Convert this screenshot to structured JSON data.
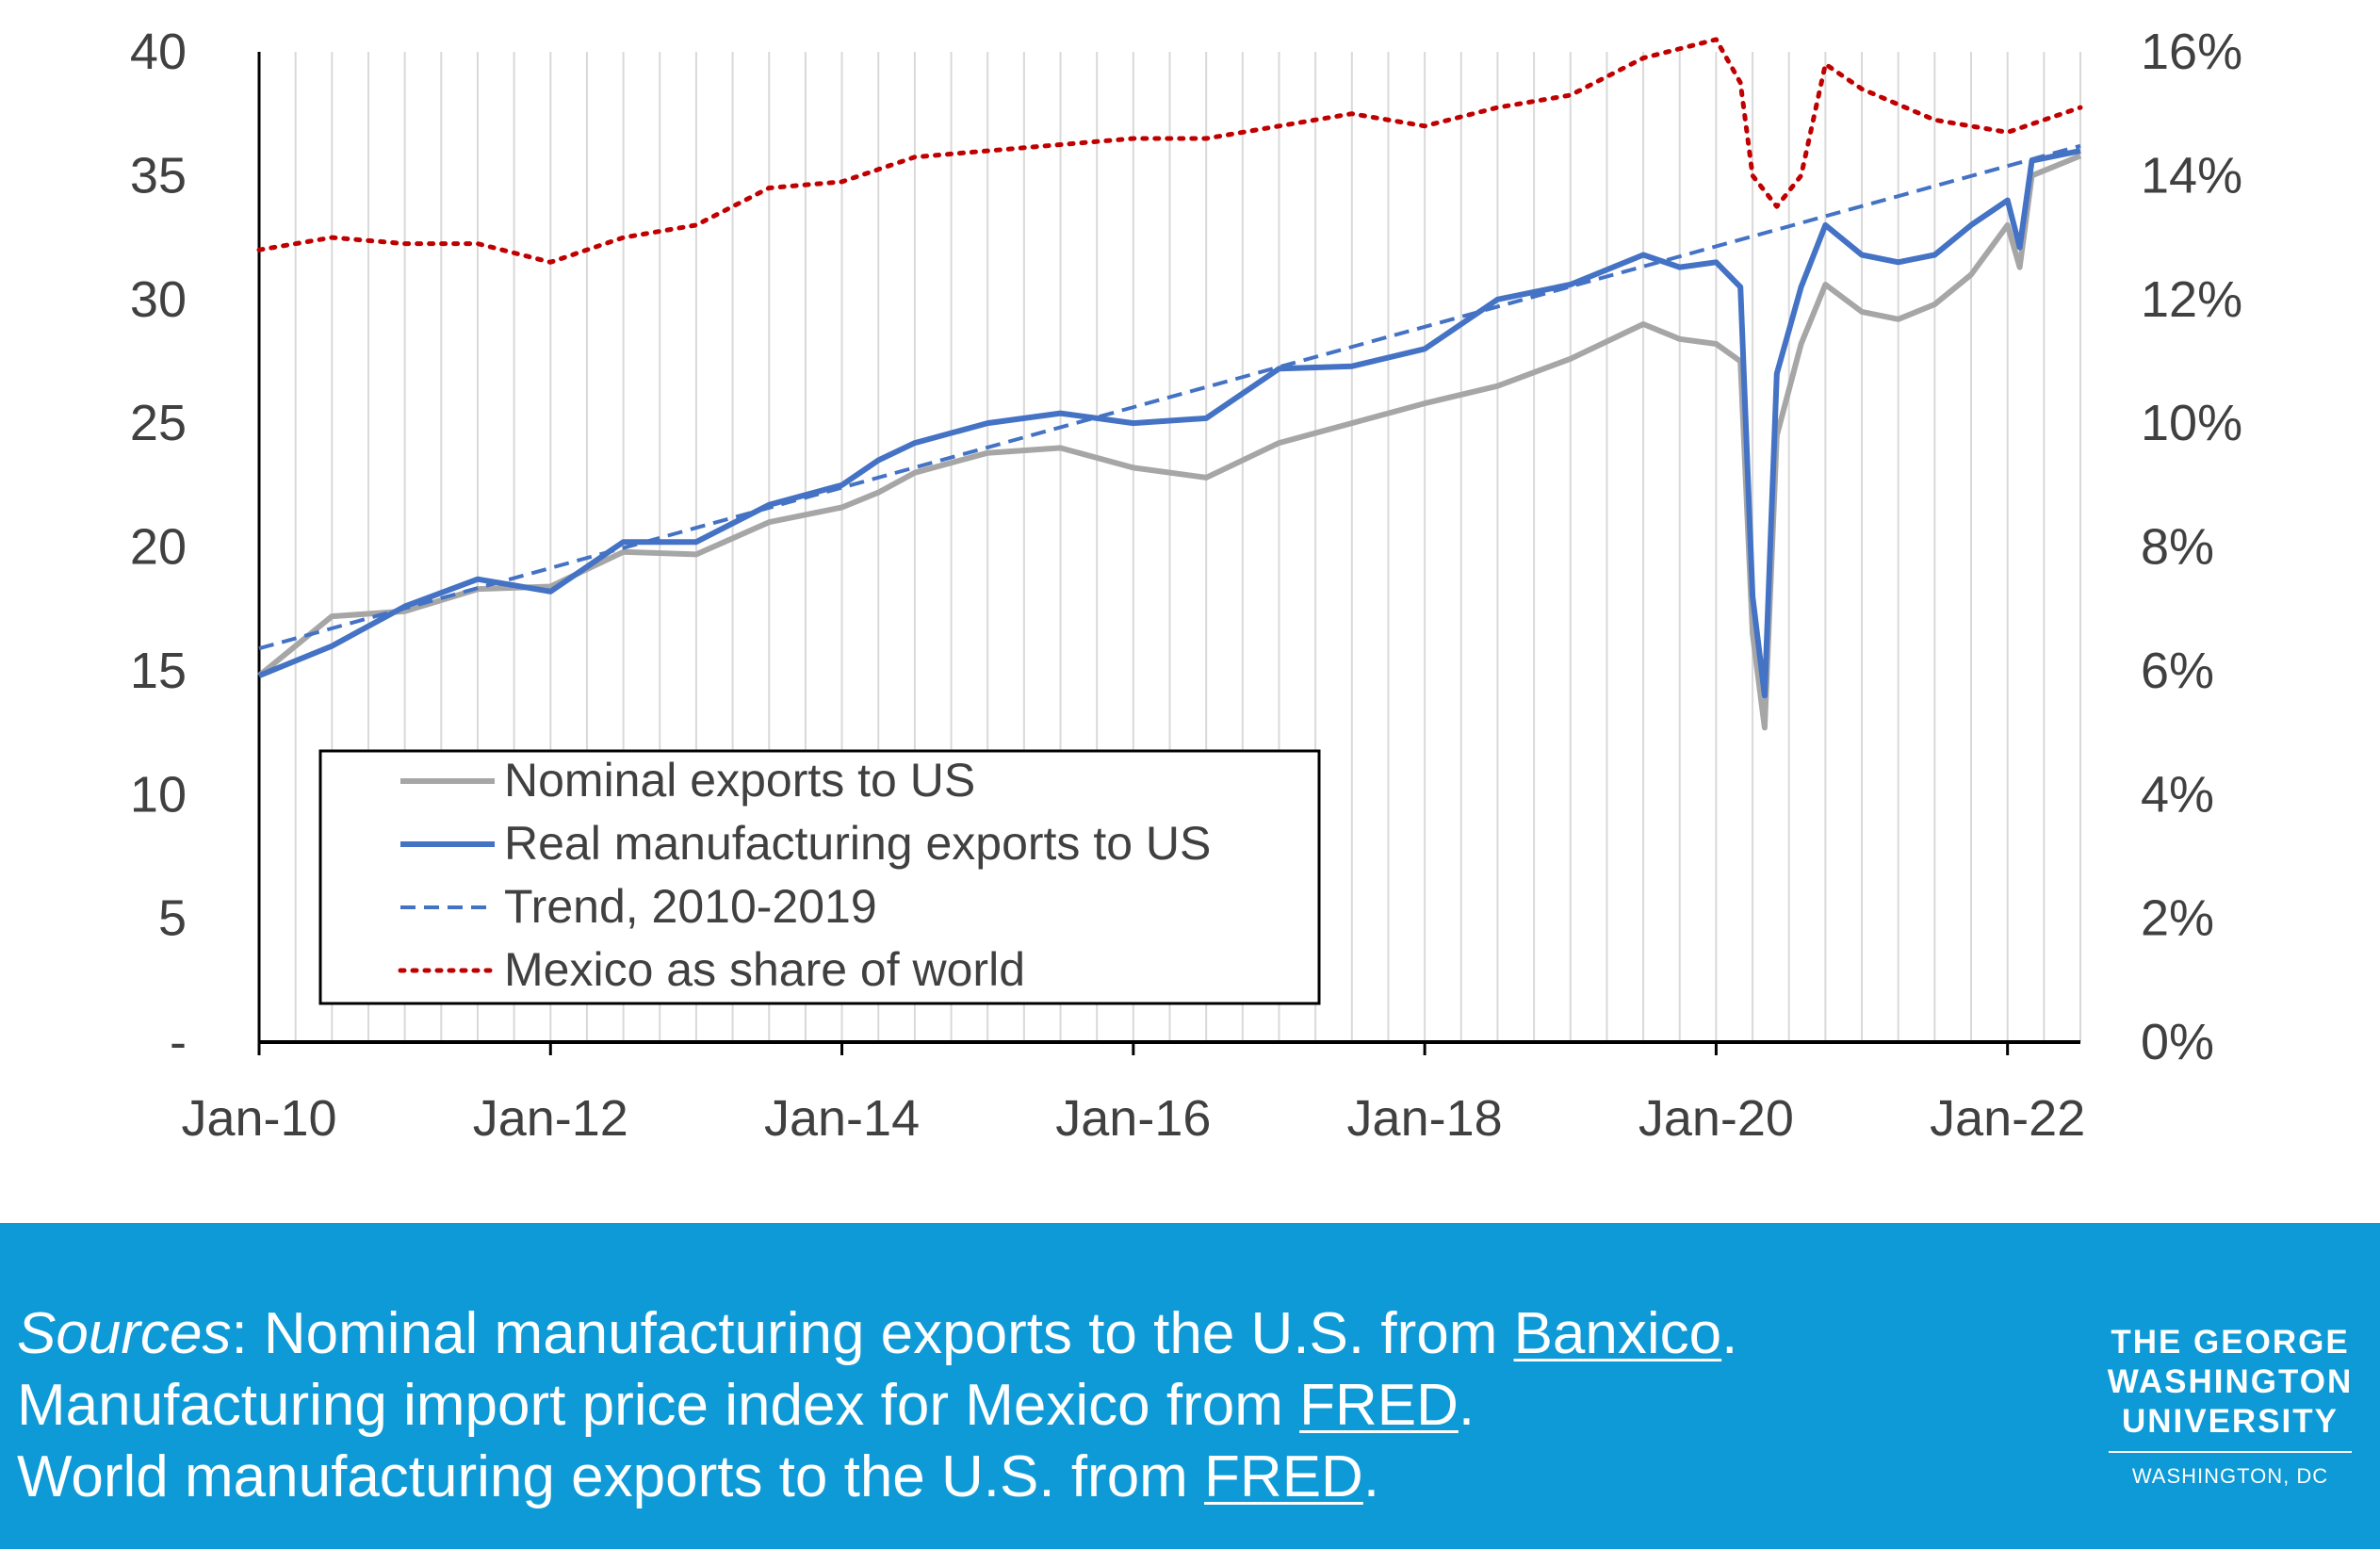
{
  "chart_data": {
    "type": "line",
    "title": "",
    "x_tick_labels": [
      "Jan-10",
      "Jan-12",
      "Jan-14",
      "Jan-16",
      "Jan-18",
      "Jan-20",
      "Jan-22"
    ],
    "x_range": [
      "2010-01",
      "2022-07"
    ],
    "y_left": {
      "ticks": [
        "-",
        "5",
        "10",
        "15",
        "20",
        "25",
        "30",
        "35",
        "40"
      ],
      "ylim": [
        0,
        40
      ]
    },
    "y_right": {
      "ticks": [
        "0%",
        "2%",
        "4%",
        "6%",
        "8%",
        "10%",
        "12%",
        "14%",
        "16%"
      ],
      "ylim": [
        0,
        16
      ]
    },
    "grid": "vertical",
    "legend_position": "bottom-left",
    "series": [
      {
        "name": "Nominal exports to US",
        "axis": "left",
        "style": "solid",
        "color": "#a6a6a6",
        "points": [
          [
            "2010-01",
            14.8
          ],
          [
            "2010-07",
            17.2
          ],
          [
            "2011-01",
            17.4
          ],
          [
            "2011-07",
            18.3
          ],
          [
            "2012-01",
            18.4
          ],
          [
            "2012-07",
            19.8
          ],
          [
            "2013-01",
            19.7
          ],
          [
            "2013-07",
            21.0
          ],
          [
            "2014-01",
            21.6
          ],
          [
            "2014-04",
            22.2
          ],
          [
            "2014-07",
            23.0
          ],
          [
            "2015-01",
            23.8
          ],
          [
            "2015-07",
            24.0
          ],
          [
            "2016-01",
            23.2
          ],
          [
            "2016-07",
            22.8
          ],
          [
            "2017-01",
            24.2
          ],
          [
            "2017-07",
            25.0
          ],
          [
            "2018-01",
            25.8
          ],
          [
            "2018-07",
            26.5
          ],
          [
            "2019-01",
            27.6
          ],
          [
            "2019-07",
            29.0
          ],
          [
            "2019-10",
            28.4
          ],
          [
            "2020-01",
            28.2
          ],
          [
            "2020-03",
            27.5
          ],
          [
            "2020-04",
            16.5
          ],
          [
            "2020-05",
            12.7
          ],
          [
            "2020-06",
            24.5
          ],
          [
            "2020-08",
            28.2
          ],
          [
            "2020-10",
            30.6
          ],
          [
            "2021-01",
            29.5
          ],
          [
            "2021-04",
            29.2
          ],
          [
            "2021-07",
            29.8
          ],
          [
            "2021-10",
            31.0
          ],
          [
            "2022-01",
            33.0
          ],
          [
            "2022-02",
            31.3
          ],
          [
            "2022-03",
            35.0
          ],
          [
            "2022-07",
            35.8
          ]
        ]
      },
      {
        "name": "Real manufacturing exports to US",
        "axis": "left",
        "style": "solid",
        "color": "#4472c4",
        "points": [
          [
            "2010-01",
            14.8
          ],
          [
            "2010-07",
            16.0
          ],
          [
            "2011-01",
            17.6
          ],
          [
            "2011-07",
            18.7
          ],
          [
            "2012-01",
            18.2
          ],
          [
            "2012-07",
            20.2
          ],
          [
            "2013-01",
            20.2
          ],
          [
            "2013-07",
            21.7
          ],
          [
            "2014-01",
            22.5
          ],
          [
            "2014-04",
            23.5
          ],
          [
            "2014-07",
            24.2
          ],
          [
            "2015-01",
            25.0
          ],
          [
            "2015-07",
            25.4
          ],
          [
            "2016-01",
            25.0
          ],
          [
            "2016-07",
            25.2
          ],
          [
            "2017-01",
            27.2
          ],
          [
            "2017-07",
            27.3
          ],
          [
            "2018-01",
            28.0
          ],
          [
            "2018-07",
            30.0
          ],
          [
            "2019-01",
            30.6
          ],
          [
            "2019-07",
            31.8
          ],
          [
            "2019-10",
            31.3
          ],
          [
            "2020-01",
            31.5
          ],
          [
            "2020-03",
            30.5
          ],
          [
            "2020-04",
            18.0
          ],
          [
            "2020-05",
            14.0
          ],
          [
            "2020-06",
            27.0
          ],
          [
            "2020-08",
            30.5
          ],
          [
            "2020-10",
            33.0
          ],
          [
            "2021-01",
            31.8
          ],
          [
            "2021-04",
            31.5
          ],
          [
            "2021-07",
            31.8
          ],
          [
            "2021-10",
            33.0
          ],
          [
            "2022-01",
            34.0
          ],
          [
            "2022-02",
            32.1
          ],
          [
            "2022-03",
            35.6
          ],
          [
            "2022-07",
            36.0
          ]
        ]
      },
      {
        "name": "Trend, 2010-2019",
        "axis": "left",
        "style": "dashed",
        "color": "#4472c4",
        "points": [
          [
            "2010-01",
            15.9
          ],
          [
            "2022-07",
            36.2
          ]
        ]
      },
      {
        "name": "Mexico as share of world",
        "axis": "right",
        "style": "dotted",
        "color": "#c00000",
        "points": [
          [
            "2010-01",
            12.8
          ],
          [
            "2010-07",
            13.0
          ],
          [
            "2011-01",
            12.9
          ],
          [
            "2011-07",
            12.9
          ],
          [
            "2012-01",
            12.6
          ],
          [
            "2012-07",
            13.0
          ],
          [
            "2013-01",
            13.2
          ],
          [
            "2013-07",
            13.8
          ],
          [
            "2014-01",
            13.9
          ],
          [
            "2014-07",
            14.3
          ],
          [
            "2015-01",
            14.4
          ],
          [
            "2015-07",
            14.5
          ],
          [
            "2016-01",
            14.6
          ],
          [
            "2016-07",
            14.6
          ],
          [
            "2017-01",
            14.8
          ],
          [
            "2017-07",
            15.0
          ],
          [
            "2018-01",
            14.8
          ],
          [
            "2018-07",
            15.1
          ],
          [
            "2019-01",
            15.3
          ],
          [
            "2019-07",
            15.9
          ],
          [
            "2020-01",
            16.2
          ],
          [
            "2020-03",
            15.5
          ],
          [
            "2020-04",
            14.0
          ],
          [
            "2020-06",
            13.5
          ],
          [
            "2020-08",
            14.0
          ],
          [
            "2020-10",
            15.8
          ],
          [
            "2021-01",
            15.4
          ],
          [
            "2021-07",
            14.9
          ],
          [
            "2022-01",
            14.7
          ],
          [
            "2022-07",
            15.1
          ]
        ]
      }
    ]
  },
  "footer": {
    "sources_lead": "Sources",
    "line1_text": ": Nominal manufacturing exports to the U.S. from ",
    "line1_link": "Banxico",
    "line1_end": ".",
    "line2_text": "Manufacturing import price index for Mexico from ",
    "line2_link": "FRED",
    "line2_end": ".",
    "line3_text": "World manufacturing exports to the U.S. from ",
    "line3_link": "FRED",
    "line3_end": ".",
    "logo_lines": [
      "THE GEORGE",
      "WASHINGTON",
      "UNIVERSITY"
    ],
    "logo_location": "WASHINGTON, DC",
    "background_color": "#0d9ad6"
  }
}
